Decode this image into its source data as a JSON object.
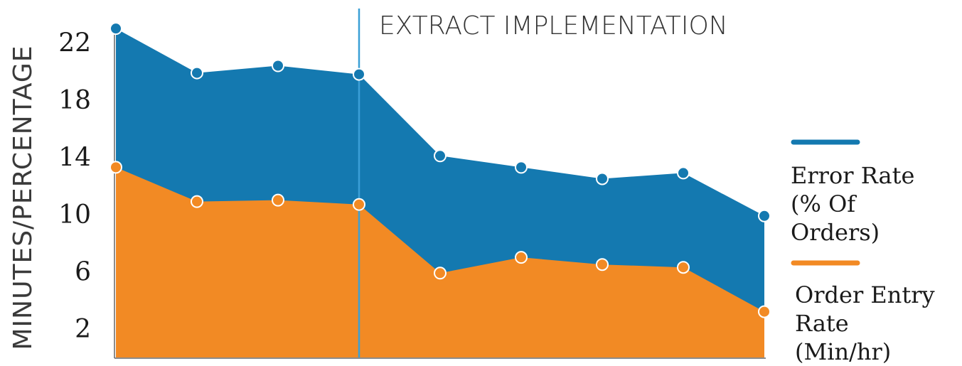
{
  "chart_data": {
    "type": "area",
    "ylabel": "MINUTES/PERCENTAGE",
    "yticks": [
      2,
      6,
      10,
      14,
      18,
      22
    ],
    "ylim": [
      0,
      24.5
    ],
    "x": [
      1,
      2,
      3,
      4,
      5,
      6,
      7,
      8,
      9
    ],
    "series": [
      {
        "name": "Error Rate (% Of Orders)",
        "legend_lines": [
          "Error Rate",
          "(% Of",
          "Orders)"
        ],
        "color": "#1479b0",
        "values": [
          23.0,
          19.9,
          20.4,
          19.8,
          14.1,
          13.3,
          12.5,
          12.9,
          9.9
        ]
      },
      {
        "name": "Order Entry Rate (Min/hr)",
        "legend_lines": [
          "Order Entry",
          "Rate",
          "(Min/hr)"
        ],
        "color": "#f28a24",
        "values": [
          13.3,
          10.9,
          11.0,
          10.7,
          5.9,
          7.0,
          6.5,
          6.3,
          3.2
        ]
      }
    ],
    "annotation": {
      "text": "EXTRACT IMPLEMENTATION",
      "x": 4.0,
      "line_color": "#3a9fd6"
    },
    "grid": false,
    "legend_position": "right"
  }
}
